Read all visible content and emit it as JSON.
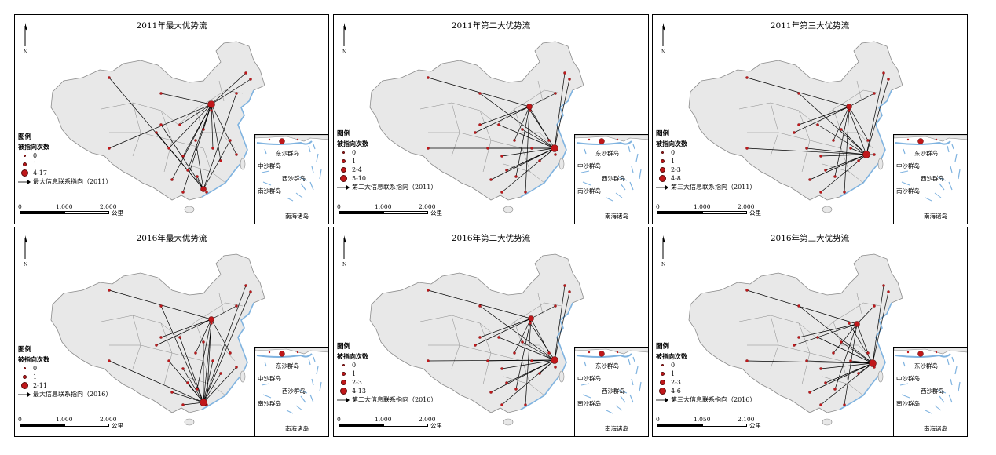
{
  "panels": [
    {
      "title": "2011年最大优势流",
      "legend_title": "图例",
      "legend_sub": "被指向次数",
      "classes": [
        "0",
        "1",
        "4-17"
      ],
      "arrow_label": "最大信息联系指向（2011）",
      "scale": [
        "0",
        "1,000",
        "2,000"
      ],
      "unit": "公里",
      "hub": [
        268,
        132
      ],
      "hub2": [
        258,
        240
      ]
    },
    {
      "title": "2011年第二大优势流",
      "legend_title": "图例",
      "legend_sub": "被指向次数",
      "classes": [
        "0",
        "1",
        "2-4",
        "5-10"
      ],
      "arrow_label": "第二大信息联系指向（2011）",
      "scale": [
        "0",
        "1,000",
        "2,000"
      ],
      "unit": "公里",
      "hub": [
        705,
        188
      ],
      "hub2": [
        673,
        135
      ]
    },
    {
      "title": "2011年第三大优势流",
      "legend_title": "图例",
      "legend_sub": "被指向次数",
      "classes": [
        "0",
        "1",
        "2-3",
        "4-8"
      ],
      "arrow_label": "第三大信息联系指向（2011）",
      "scale": [
        "0",
        "1,000",
        "2,000"
      ],
      "unit": "公里",
      "hub": [
        1102,
        196
      ],
      "hub2": [
        1080,
        135
      ]
    },
    {
      "title": "2016年最大优势流",
      "legend_title": "图例",
      "legend_sub": "被指向次数",
      "classes": [
        "0",
        "1",
        "2-11"
      ],
      "arrow_label": "最大信息联系指向（2016）",
      "scale": [
        "0",
        "1,000",
        "2,000"
      ],
      "unit": "公里",
      "hub": [
        258,
        512
      ],
      "hub2": [
        268,
        406
      ]
    },
    {
      "title": "2016年第二大优势流",
      "legend_title": "图例",
      "legend_sub": "被指向次数",
      "classes": [
        "0",
        "1",
        "2-3",
        "4-13"
      ],
      "arrow_label": "第二大信息联系指向（2016）",
      "scale": [
        "0",
        "1,000",
        "2,000"
      ],
      "unit": "公里",
      "hub": [
        705,
        458
      ],
      "hub2": [
        675,
        405
      ]
    },
    {
      "title": "2016年第三大优势流",
      "legend_title": "图例",
      "legend_sub": "被指向次数",
      "classes": [
        "0",
        "1",
        "2-3",
        "4-6"
      ],
      "arrow_label": "第三大信息联系指向（2016）",
      "scale": [
        "0",
        "1,050",
        "2,100"
      ],
      "unit": "公里",
      "hub": [
        1110,
        462
      ],
      "hub2": [
        1090,
        412
      ]
    }
  ],
  "inset_labels": {
    "dongsha": "东沙群岛",
    "zhongsha": "中沙群岛",
    "xisha": "西沙群岛",
    "nansha": "南沙群岛",
    "nanhai": "南海诸岛"
  },
  "north_label": "N",
  "colors": {
    "land": "#e8e8e8",
    "border": "#8a8a8a",
    "sea": "#7fb3e0",
    "node": "#c0171a",
    "line": "#000000"
  }
}
